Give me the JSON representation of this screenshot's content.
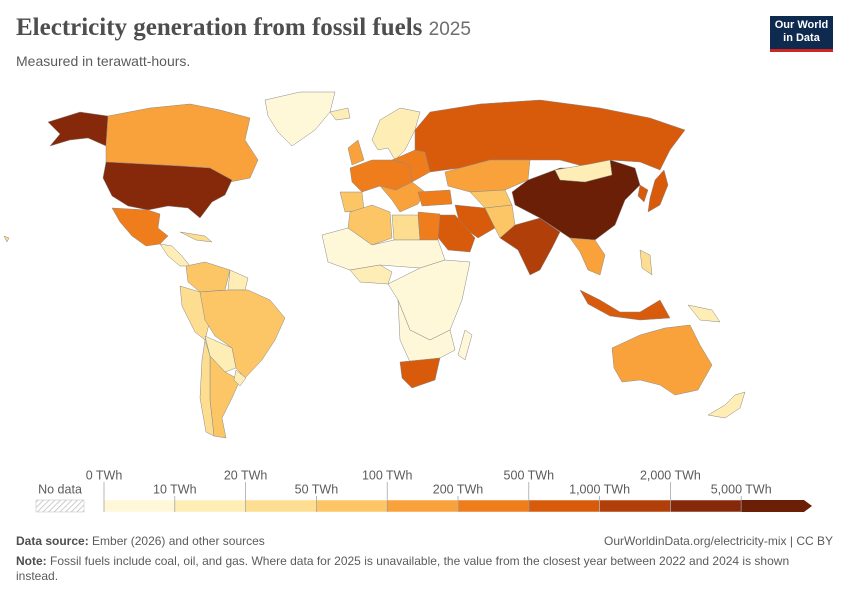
{
  "header": {
    "title": "Electricity generation from fossil fuels",
    "year": "2025",
    "subtitle": "Measured in terawatt-hours.",
    "logo": [
      "Our World",
      "in Data"
    ]
  },
  "legend": {
    "no_data": "No data",
    "ticks": [
      {
        "value": 0,
        "label": "0 TWh"
      },
      {
        "value": 10,
        "label": "10 TWh"
      },
      {
        "value": 20,
        "label": "20 TWh"
      },
      {
        "value": 50,
        "label": "50 TWh"
      },
      {
        "value": 100,
        "label": "100 TWh"
      },
      {
        "value": 200,
        "label": "200 TWh"
      },
      {
        "value": 500,
        "label": "500 TWh"
      },
      {
        "value": 1000,
        "label": "1,000 TWh"
      },
      {
        "value": 2000,
        "label": "2,000 TWh"
      },
      {
        "value": 5000,
        "label": "5,000 TWh"
      }
    ],
    "colors": [
      "#fef7d8",
      "#feedb4",
      "#fddd8f",
      "#fcc666",
      "#f9a23b",
      "#ef7d1c",
      "#d85a0b",
      "#b13f09",
      "#85290a",
      "#6a1f06"
    ]
  },
  "footer": {
    "source_label": "Data source:",
    "source": "Ember (2026) and other sources",
    "url": "OurWorldinData.org/electricity-mix | CC BY",
    "note_label": "Note:",
    "note": "Fossil fuels include coal, oil, and gas. Where data for 2025 is unavailable, the value from the closest year between 2022 and 2024 is shown instead."
  }
}
